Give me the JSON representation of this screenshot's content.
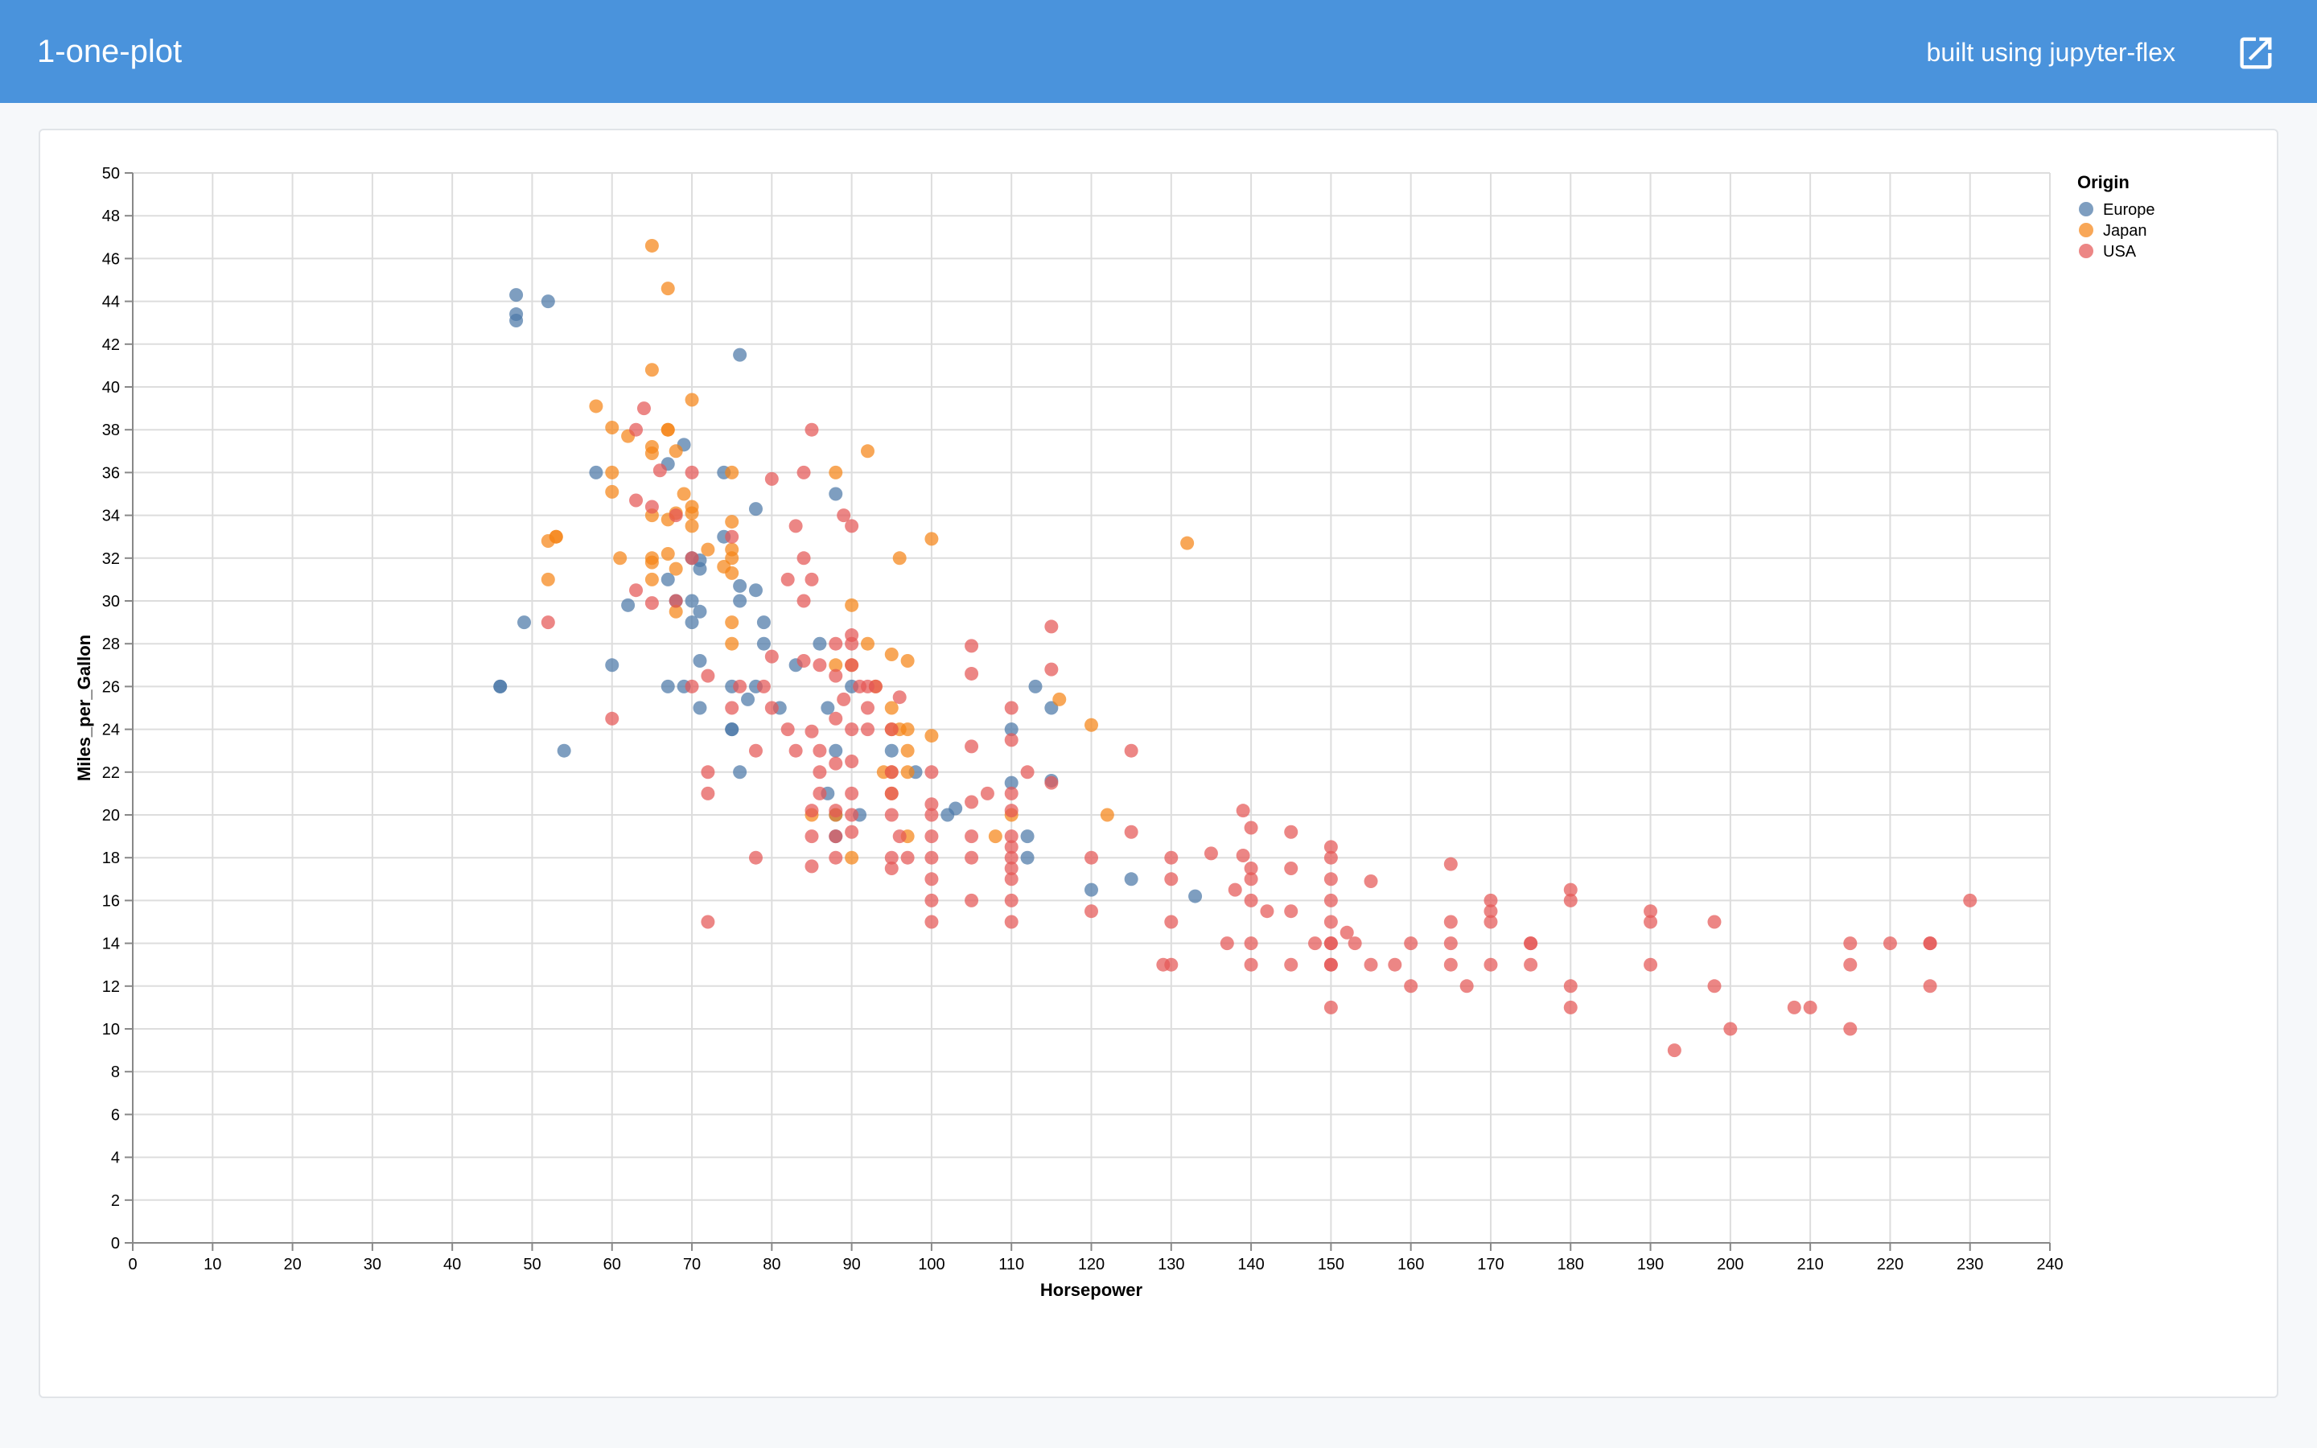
{
  "header": {
    "title": "1-one-plot",
    "built_using": "built using jupyter-flex"
  },
  "icons": {
    "external_link": "external-link-icon"
  },
  "colors": {
    "header_bg": "#4a93dc",
    "Europe": "#4c78a8",
    "Japan": "#f58518",
    "USA": "#e45756"
  },
  "chart_data": {
    "type": "scatter",
    "xlabel": "Horsepower",
    "ylabel": "Miles_per_Gallon",
    "xlim": [
      0,
      240
    ],
    "ylim": [
      0,
      50
    ],
    "x_ticks": [
      0,
      10,
      20,
      30,
      40,
      50,
      60,
      70,
      80,
      90,
      100,
      110,
      120,
      130,
      140,
      150,
      160,
      170,
      180,
      190,
      200,
      210,
      220,
      230,
      240
    ],
    "y_ticks": [
      0,
      2,
      4,
      6,
      8,
      10,
      12,
      14,
      16,
      18,
      20,
      22,
      24,
      26,
      28,
      30,
      32,
      34,
      36,
      38,
      40,
      42,
      44,
      46,
      48,
      50
    ],
    "grid": true,
    "legend": {
      "title": "Origin",
      "placement": "top-right"
    },
    "series": [
      {
        "name": "Europe",
        "color": "#4c78a8",
        "points": [
          [
            48,
            44.3
          ],
          [
            48,
            43.4
          ],
          [
            48,
            43.1
          ],
          [
            52,
            44
          ],
          [
            76,
            41.5
          ],
          [
            69,
            37.3
          ],
          [
            67,
            36.4
          ],
          [
            58,
            36
          ],
          [
            74,
            36
          ],
          [
            88,
            35
          ],
          [
            78,
            34.3
          ],
          [
            74,
            33
          ],
          [
            71,
            31.9
          ],
          [
            71,
            31.5
          ],
          [
            67,
            31
          ],
          [
            70,
            30
          ],
          [
            71,
            29.5
          ],
          [
            76,
            30.7
          ],
          [
            78,
            30.5
          ],
          [
            76,
            30
          ],
          [
            70,
            29
          ],
          [
            62,
            29.8
          ],
          [
            49,
            29
          ],
          [
            79,
            29
          ],
          [
            71,
            27.2
          ],
          [
            46,
            26
          ],
          [
            46,
            26
          ],
          [
            67,
            26
          ],
          [
            69,
            26
          ],
          [
            75,
            26
          ],
          [
            78,
            26
          ],
          [
            113,
            26
          ],
          [
            60,
            27
          ],
          [
            79,
            28
          ],
          [
            77,
            25.4
          ],
          [
            71,
            25
          ],
          [
            81,
            25
          ],
          [
            87,
            25
          ],
          [
            115,
            25
          ],
          [
            75,
            24
          ],
          [
            75,
            24
          ],
          [
            110,
            24
          ],
          [
            54,
            23
          ],
          [
            88,
            23
          ],
          [
            95,
            23
          ],
          [
            76,
            22
          ],
          [
            98,
            22
          ],
          [
            110,
            21.5
          ],
          [
            115,
            21.6
          ],
          [
            87,
            21
          ],
          [
            91,
            20
          ],
          [
            102,
            20
          ],
          [
            103,
            20.3
          ],
          [
            88,
            19
          ],
          [
            112,
            19
          ],
          [
            112,
            18
          ],
          [
            120,
            16.5
          ],
          [
            125,
            17
          ],
          [
            133,
            16.2
          ],
          [
            90,
            26
          ],
          [
            86,
            28
          ],
          [
            83,
            27
          ],
          [
            70,
            32
          ],
          [
            68,
            30
          ],
          [
            88,
            20
          ]
        ]
      },
      {
        "name": "Japan",
        "color": "#f58518",
        "points": [
          [
            65,
            46.6
          ],
          [
            67,
            44.6
          ],
          [
            65,
            40.8
          ],
          [
            70,
            39.4
          ],
          [
            58,
            39.1
          ],
          [
            60,
            38.1
          ],
          [
            67,
            38
          ],
          [
            67,
            38
          ],
          [
            62,
            37.7
          ],
          [
            65,
            37.2
          ],
          [
            65,
            36.9
          ],
          [
            68,
            37
          ],
          [
            92,
            37
          ],
          [
            60,
            36
          ],
          [
            75,
            36
          ],
          [
            88,
            36
          ],
          [
            60,
            35.1
          ],
          [
            69,
            35
          ],
          [
            70,
            34.4
          ],
          [
            70,
            34.1
          ],
          [
            68,
            34.1
          ],
          [
            65,
            34
          ],
          [
            67,
            33.8
          ],
          [
            75,
            33.7
          ],
          [
            70,
            33.5
          ],
          [
            53,
            33
          ],
          [
            53,
            33
          ],
          [
            52,
            32.8
          ],
          [
            100,
            32.9
          ],
          [
            132,
            32.7
          ],
          [
            72,
            32.4
          ],
          [
            75,
            32.4
          ],
          [
            67,
            32.2
          ],
          [
            75,
            32
          ],
          [
            65,
            32
          ],
          [
            61,
            32
          ],
          [
            96,
            32
          ],
          [
            65,
            31.8
          ],
          [
            74,
            31.6
          ],
          [
            68,
            31.5
          ],
          [
            75,
            31.3
          ],
          [
            52,
            31
          ],
          [
            65,
            31
          ],
          [
            68,
            29.5
          ],
          [
            90,
            29.8
          ],
          [
            75,
            29
          ],
          [
            75,
            28
          ],
          [
            92,
            28
          ],
          [
            95,
            27.5
          ],
          [
            97,
            27.2
          ],
          [
            88,
            27
          ],
          [
            90,
            27
          ],
          [
            93,
            26
          ],
          [
            116,
            25.4
          ],
          [
            95,
            25
          ],
          [
            97,
            24
          ],
          [
            96,
            24
          ],
          [
            95,
            24
          ],
          [
            100,
            23.7
          ],
          [
            120,
            24.2
          ],
          [
            97,
            23
          ],
          [
            94,
            22
          ],
          [
            95,
            22
          ],
          [
            97,
            22
          ],
          [
            95,
            21
          ],
          [
            88,
            20
          ],
          [
            122,
            20
          ],
          [
            97,
            19
          ],
          [
            108,
            19
          ],
          [
            85,
            20
          ],
          [
            90,
            18
          ],
          [
            110,
            20
          ]
        ]
      },
      {
        "name": "USA",
        "color": "#e45756",
        "points": [
          [
            64,
            39
          ],
          [
            63,
            38
          ],
          [
            85,
            38
          ],
          [
            80,
            35.7
          ],
          [
            84,
            36
          ],
          [
            70,
            36
          ],
          [
            66,
            36.1
          ],
          [
            63,
            34.7
          ],
          [
            65,
            34.4
          ],
          [
            89,
            34
          ],
          [
            83,
            33.5
          ],
          [
            90,
            33.5
          ],
          [
            70,
            32
          ],
          [
            84,
            32
          ],
          [
            85,
            31
          ],
          [
            82,
            31
          ],
          [
            63,
            30.5
          ],
          [
            84,
            30
          ],
          [
            65,
            29.9
          ],
          [
            68,
            30
          ],
          [
            52,
            29
          ],
          [
            90,
            28.4
          ],
          [
            115,
            28.8
          ],
          [
            88,
            28
          ],
          [
            90,
            28
          ],
          [
            105,
            27.9
          ],
          [
            80,
            27.4
          ],
          [
            84,
            27.2
          ],
          [
            86,
            27
          ],
          [
            90,
            27
          ],
          [
            105,
            26.6
          ],
          [
            115,
            26.8
          ],
          [
            70,
            26
          ],
          [
            76,
            26
          ],
          [
            79,
            26
          ],
          [
            92,
            26
          ],
          [
            93,
            26
          ],
          [
            96,
            25.5
          ],
          [
            89,
            25.4
          ],
          [
            72,
            26.5
          ],
          [
            75,
            25
          ],
          [
            80,
            25
          ],
          [
            110,
            25
          ],
          [
            82,
            24
          ],
          [
            88,
            24.5
          ],
          [
            90,
            24
          ],
          [
            92,
            24
          ],
          [
            95,
            24
          ],
          [
            60,
            24.5
          ],
          [
            85,
            23.9
          ],
          [
            83,
            23
          ],
          [
            86,
            23
          ],
          [
            90,
            22.5
          ],
          [
            95,
            22
          ],
          [
            100,
            22
          ],
          [
            105,
            23.2
          ],
          [
            110,
            23.5
          ],
          [
            112,
            22
          ],
          [
            125,
            23
          ],
          [
            72,
            22
          ],
          [
            86,
            22
          ],
          [
            88,
            22.4
          ],
          [
            72,
            21
          ],
          [
            90,
            21
          ],
          [
            95,
            21
          ],
          [
            86,
            21
          ],
          [
            100,
            20.5
          ],
          [
            105,
            20.6
          ],
          [
            110,
            21
          ],
          [
            110,
            20.2
          ],
          [
            115,
            21.5
          ],
          [
            85,
            20.2
          ],
          [
            88,
            20.2
          ],
          [
            90,
            20
          ],
          [
            95,
            20
          ],
          [
            100,
            20
          ],
          [
            107,
            21
          ],
          [
            85,
            19
          ],
          [
            88,
            19
          ],
          [
            90,
            19.2
          ],
          [
            96,
            19
          ],
          [
            100,
            19
          ],
          [
            105,
            19
          ],
          [
            110,
            19
          ],
          [
            78,
            18
          ],
          [
            88,
            18
          ],
          [
            95,
            18
          ],
          [
            100,
            18
          ],
          [
            105,
            18
          ],
          [
            110,
            18.5
          ],
          [
            110,
            18
          ],
          [
            120,
            18
          ],
          [
            130,
            18
          ],
          [
            135,
            18.2
          ],
          [
            139,
            18.1
          ],
          [
            140,
            19.4
          ],
          [
            145,
            19.2
          ],
          [
            150,
            18.5
          ],
          [
            150,
            18
          ],
          [
            139,
            20.2
          ],
          [
            85,
            17.6
          ],
          [
            95,
            17.5
          ],
          [
            100,
            17
          ],
          [
            110,
            17.5
          ],
          [
            110,
            17
          ],
          [
            125,
            19.2
          ],
          [
            140,
            17.5
          ],
          [
            140,
            17
          ],
          [
            145,
            17.5
          ],
          [
            150,
            17
          ],
          [
            155,
            16.9
          ],
          [
            165,
            17.7
          ],
          [
            100,
            16
          ],
          [
            105,
            16
          ],
          [
            110,
            16
          ],
          [
            130,
            17
          ],
          [
            138,
            16.5
          ],
          [
            140,
            16
          ],
          [
            150,
            16
          ],
          [
            170,
            16
          ],
          [
            180,
            16.5
          ],
          [
            180,
            16
          ],
          [
            230,
            16
          ],
          [
            72,
            15
          ],
          [
            100,
            15
          ],
          [
            110,
            15
          ],
          [
            120,
            15.5
          ],
          [
            130,
            15
          ],
          [
            142,
            15.5
          ],
          [
            145,
            15.5
          ],
          [
            150,
            15
          ],
          [
            152,
            14.5
          ],
          [
            165,
            15
          ],
          [
            170,
            15.5
          ],
          [
            170,
            15
          ],
          [
            190,
            15.5
          ],
          [
            190,
            15
          ],
          [
            198,
            15
          ],
          [
            137,
            14
          ],
          [
            140,
            14
          ],
          [
            148,
            14
          ],
          [
            150,
            14
          ],
          [
            150,
            14
          ],
          [
            153,
            14
          ],
          [
            160,
            14
          ],
          [
            165,
            14
          ],
          [
            175,
            14
          ],
          [
            175,
            14
          ],
          [
            215,
            14
          ],
          [
            220,
            14
          ],
          [
            225,
            14
          ],
          [
            225,
            14
          ],
          [
            129,
            13
          ],
          [
            130,
            13
          ],
          [
            140,
            13
          ],
          [
            145,
            13
          ],
          [
            150,
            13
          ],
          [
            150,
            13
          ],
          [
            155,
            13
          ],
          [
            158,
            13
          ],
          [
            165,
            13
          ],
          [
            170,
            13
          ],
          [
            175,
            13
          ],
          [
            190,
            13
          ],
          [
            215,
            13
          ],
          [
            160,
            12
          ],
          [
            167,
            12
          ],
          [
            180,
            12
          ],
          [
            198,
            12
          ],
          [
            225,
            12
          ],
          [
            150,
            11
          ],
          [
            180,
            11
          ],
          [
            208,
            11
          ],
          [
            210,
            11
          ],
          [
            200,
            10
          ],
          [
            215,
            10
          ],
          [
            193,
            9
          ],
          [
            97,
            18
          ],
          [
            92,
            25
          ],
          [
            88,
            26.5
          ],
          [
            78,
            23
          ],
          [
            68,
            34
          ],
          [
            75,
            33
          ],
          [
            91,
            26
          ]
        ]
      }
    ]
  }
}
